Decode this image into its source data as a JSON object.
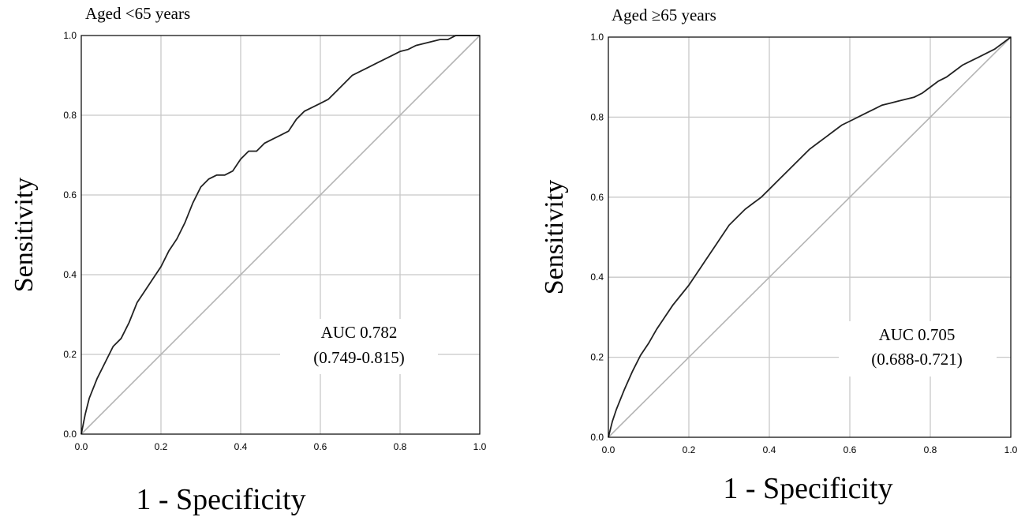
{
  "chart_data": [
    {
      "type": "line",
      "title": "Aged <65 years",
      "xlabel": "1 - Specificity",
      "ylabel": "Sensitivity",
      "xlim": [
        0,
        1
      ],
      "ylim": [
        0,
        1
      ],
      "xticks": [
        "0.0",
        "0.2",
        "0.4",
        "0.6",
        "0.8",
        "1.0"
      ],
      "yticks": [
        "0.0",
        "0.2",
        "0.4",
        "0.6",
        "0.8",
        "1.0"
      ],
      "grid": true,
      "annotation": [
        "AUC 0.782",
        "(0.749-0.815)"
      ],
      "series": [
        {
          "x": [
            0,
            0.01,
            0.02,
            0.04,
            0.06,
            0.08,
            0.1,
            0.12,
            0.14,
            0.16,
            0.18,
            0.2,
            0.22,
            0.24,
            0.26,
            0.28,
            0.3,
            0.32,
            0.34,
            0.36,
            0.38,
            0.4,
            0.42,
            0.44,
            0.46,
            0.48,
            0.5,
            0.52,
            0.54,
            0.56,
            0.58,
            0.6,
            0.62,
            0.64,
            0.66,
            0.68,
            0.7,
            0.72,
            0.74,
            0.76,
            0.78,
            0.8,
            0.82,
            0.84,
            0.86,
            0.88,
            0.9,
            0.92,
            0.94,
            0.96,
            0.98,
            1.0
          ],
          "y": [
            0,
            0.05,
            0.09,
            0.14,
            0.18,
            0.22,
            0.24,
            0.28,
            0.33,
            0.36,
            0.39,
            0.42,
            0.46,
            0.49,
            0.53,
            0.58,
            0.62,
            0.64,
            0.65,
            0.65,
            0.66,
            0.69,
            0.71,
            0.71,
            0.73,
            0.74,
            0.75,
            0.76,
            0.79,
            0.81,
            0.82,
            0.83,
            0.84,
            0.86,
            0.88,
            0.9,
            0.91,
            0.92,
            0.93,
            0.94,
            0.95,
            0.96,
            0.965,
            0.975,
            0.98,
            0.985,
            0.99,
            0.99,
            1.0,
            1.0,
            1.0,
            1.0
          ]
        },
        {
          "x": [
            0,
            1
          ],
          "y": [
            0,
            1
          ]
        }
      ]
    },
    {
      "type": "line",
      "title": "Aged ≥65 years",
      "xlabel": "1 - Specificity",
      "ylabel": "Sensitivity",
      "xlim": [
        0,
        1
      ],
      "ylim": [
        0,
        1
      ],
      "xticks": [
        "0.0",
        "0.2",
        "0.4",
        "0.6",
        "0.8",
        "1.0"
      ],
      "yticks": [
        "0.0",
        "0.2",
        "0.4",
        "0.6",
        "0.8",
        "1.0"
      ],
      "grid": true,
      "annotation": [
        "AUC 0.705",
        "(0.688-0.721)"
      ],
      "series": [
        {
          "x": [
            0,
            0.01,
            0.02,
            0.04,
            0.06,
            0.08,
            0.1,
            0.12,
            0.14,
            0.16,
            0.18,
            0.2,
            0.22,
            0.24,
            0.26,
            0.28,
            0.3,
            0.32,
            0.34,
            0.36,
            0.38,
            0.4,
            0.42,
            0.44,
            0.46,
            0.48,
            0.5,
            0.52,
            0.54,
            0.56,
            0.58,
            0.6,
            0.62,
            0.64,
            0.66,
            0.68,
            0.7,
            0.72,
            0.74,
            0.76,
            0.78,
            0.8,
            0.82,
            0.84,
            0.86,
            0.88,
            0.9,
            0.92,
            0.94,
            0.96,
            0.98,
            1.0
          ],
          "y": [
            0,
            0.04,
            0.07,
            0.12,
            0.165,
            0.205,
            0.235,
            0.27,
            0.3,
            0.33,
            0.355,
            0.38,
            0.41,
            0.44,
            0.47,
            0.5,
            0.53,
            0.55,
            0.57,
            0.585,
            0.6,
            0.62,
            0.64,
            0.66,
            0.68,
            0.7,
            0.72,
            0.735,
            0.75,
            0.765,
            0.78,
            0.79,
            0.8,
            0.81,
            0.82,
            0.83,
            0.835,
            0.84,
            0.845,
            0.85,
            0.86,
            0.875,
            0.89,
            0.9,
            0.915,
            0.93,
            0.94,
            0.95,
            0.96,
            0.97,
            0.985,
            1.0
          ]
        },
        {
          "x": [
            0,
            1
          ],
          "y": [
            0,
            1
          ]
        }
      ]
    }
  ]
}
